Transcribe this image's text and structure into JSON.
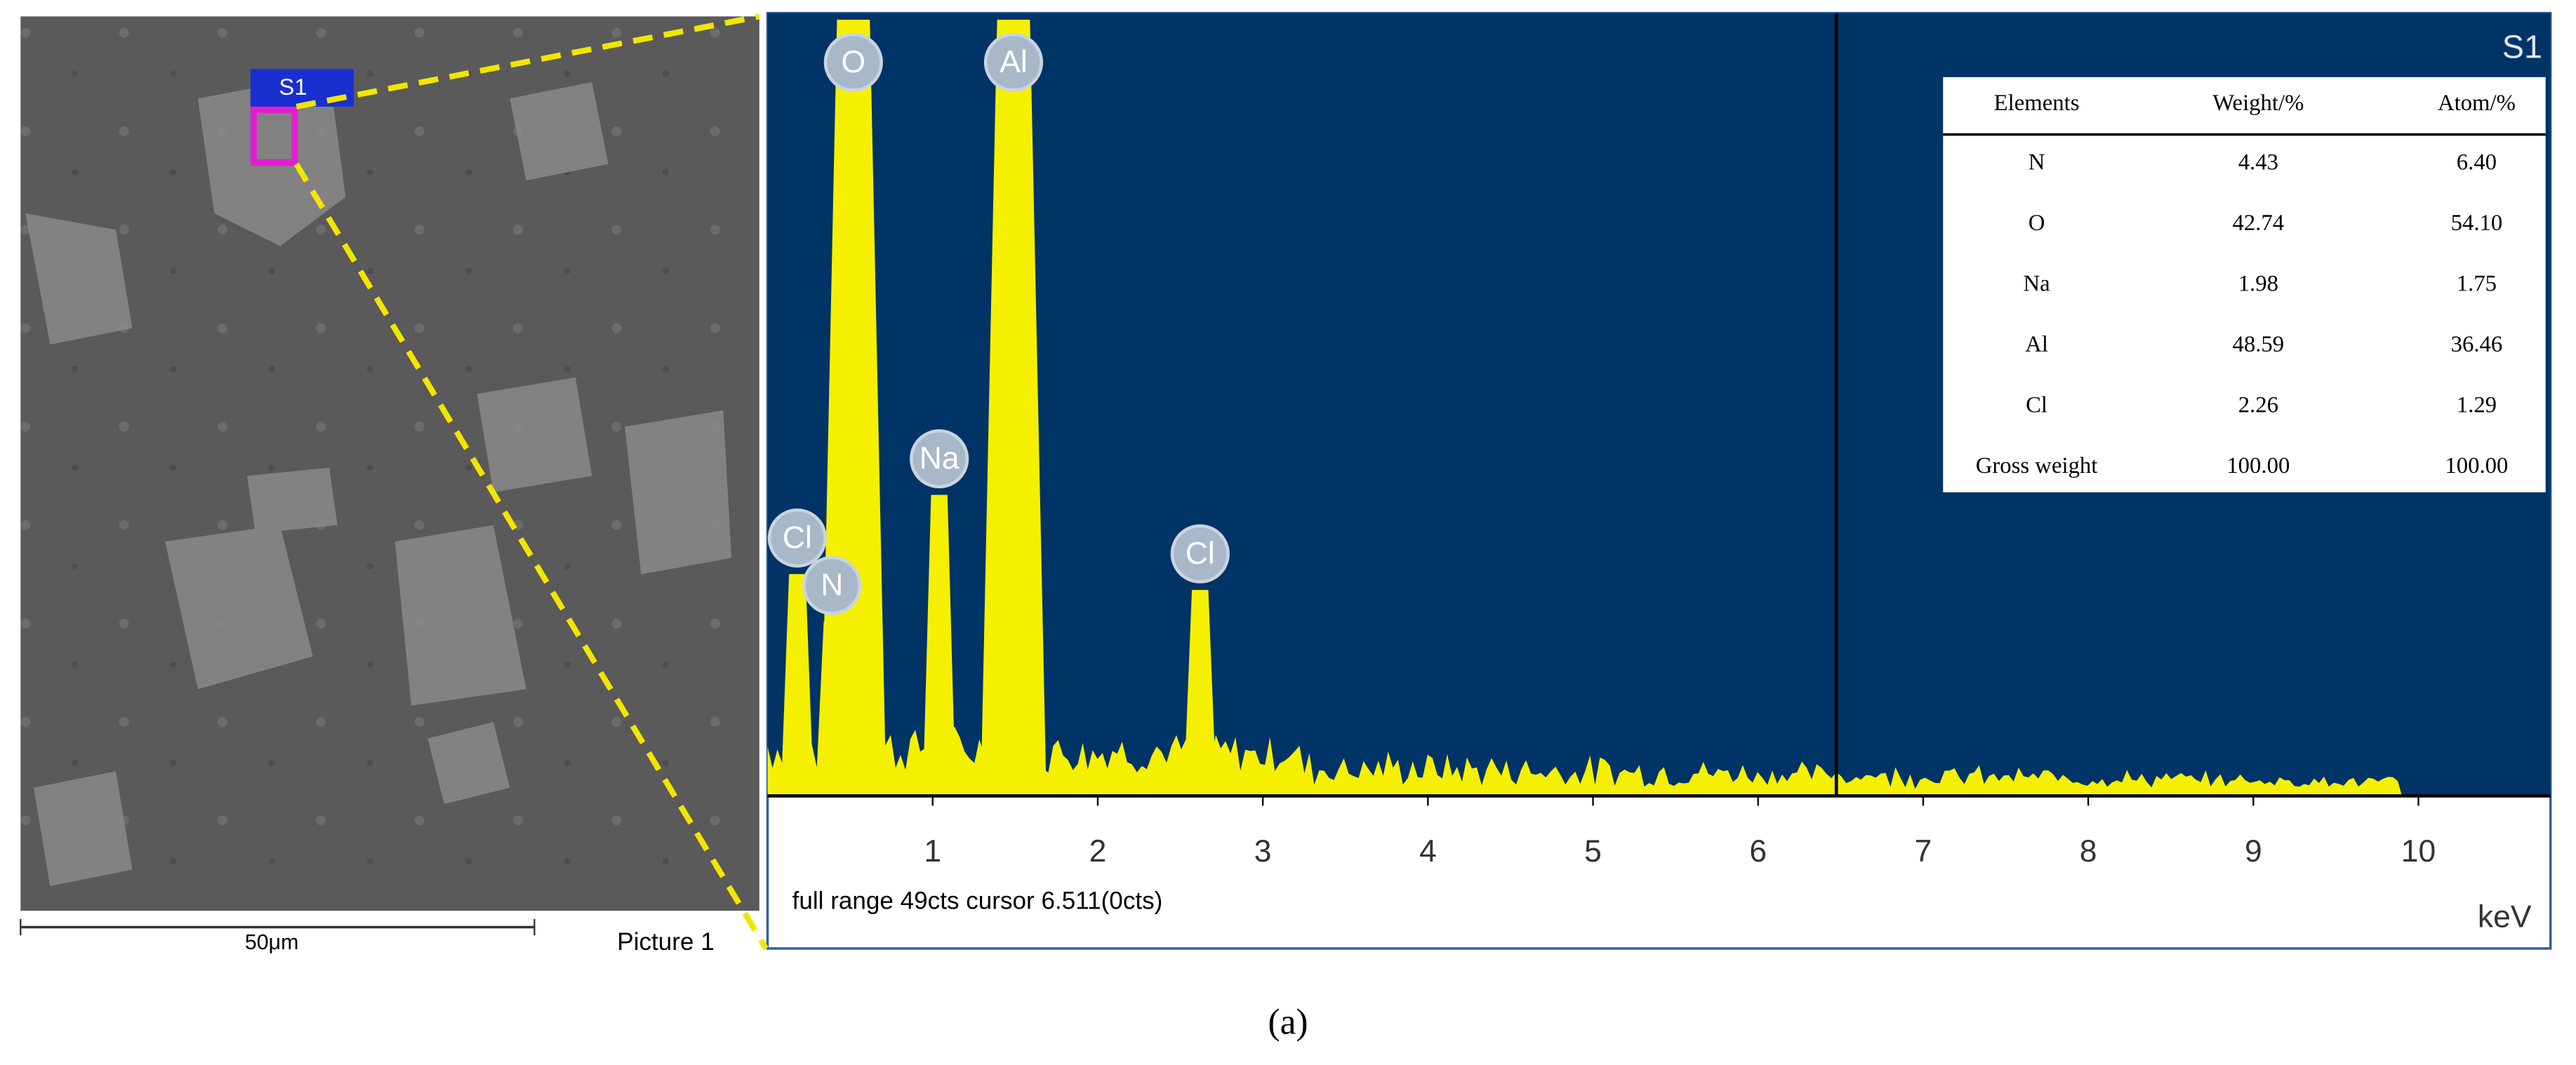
{
  "sem": {
    "region_label": "S1",
    "scale_label": "50μm",
    "picture_label": "Picture 1"
  },
  "spectrum": {
    "label": "S1",
    "full_range_counts": 49,
    "xlim": [
      0,
      10.8
    ],
    "xticks": [
      1,
      2,
      3,
      4,
      5,
      6,
      7,
      8,
      9,
      10
    ],
    "unit": "keV",
    "status": "full range 49cts cursor 6.511(0cts)",
    "peaks": [
      {
        "label": "Cl",
        "x": 0.18,
        "counts": 14
      },
      {
        "label": "N",
        "x": 0.39,
        "counts": 11
      },
      {
        "label": "O",
        "x": 0.52,
        "counts": 49
      },
      {
        "label": "Na",
        "x": 1.04,
        "counts": 19
      },
      {
        "label": "Al",
        "x": 1.49,
        "counts": 49
      },
      {
        "label": "Cl",
        "x": 2.62,
        "counts": 13
      }
    ]
  },
  "table": {
    "header": [
      "Elements",
      "Weight/%",
      "Atom/%"
    ],
    "rows": [
      [
        "N",
        "4.43",
        "6.40"
      ],
      [
        "O",
        "42.74",
        "54.10"
      ],
      [
        "Na",
        "1.98",
        "1.75"
      ],
      [
        "Al",
        "48.59",
        "36.46"
      ],
      [
        "Cl",
        "2.26",
        "1.29"
      ],
      [
        "Gross weight",
        "100.00",
        "100.00"
      ]
    ]
  },
  "caption": "(a)"
}
